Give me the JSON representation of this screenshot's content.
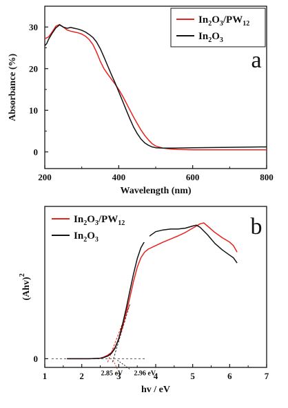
{
  "chart_data": [
    {
      "type": "line",
      "panel_label": "a",
      "xlabel": "Wavelength (nm)",
      "ylabel": "Absorbance (%)",
      "xlim": [
        200,
        800
      ],
      "ylim": [
        -4,
        35
      ],
      "xticks": [
        200,
        400,
        600,
        800
      ],
      "yticks": [
        0,
        10,
        20,
        30
      ],
      "legend_position": "top-right",
      "series": [
        {
          "name": "In2O3/PW12",
          "legend_main": "In",
          "legend_sub1": "2",
          "legend_mid": "O",
          "legend_sub2": "3",
          "legend_tail": "/PW",
          "legend_sub3": "12",
          "color": "#e8211d",
          "points": [
            [
              200,
              27.2
            ],
            [
              210,
              27.6
            ],
            [
              220,
              28.8
            ],
            [
              230,
              30.2
            ],
            [
              240,
              30.6
            ],
            [
              250,
              30.0
            ],
            [
              260,
              29.3
            ],
            [
              270,
              29.0
            ],
            [
              280,
              28.8
            ],
            [
              290,
              28.6
            ],
            [
              300,
              28.3
            ],
            [
              310,
              27.8
            ],
            [
              320,
              27.0
            ],
            [
              330,
              25.8
            ],
            [
              340,
              24.0
            ],
            [
              350,
              21.8
            ],
            [
              360,
              20.0
            ],
            [
              370,
              18.7
            ],
            [
              380,
              17.5
            ],
            [
              390,
              16.3
            ],
            [
              400,
              15.0
            ],
            [
              410,
              13.5
            ],
            [
              420,
              11.8
            ],
            [
              430,
              10.1
            ],
            [
              440,
              8.4
            ],
            [
              450,
              6.8
            ],
            [
              460,
              5.3
            ],
            [
              470,
              4.0
            ],
            [
              480,
              2.9
            ],
            [
              490,
              2.0
            ],
            [
              500,
              1.4
            ],
            [
              520,
              0.9
            ],
            [
              540,
              0.7
            ],
            [
              560,
              0.6
            ],
            [
              600,
              0.5
            ],
            [
              700,
              0.5
            ],
            [
              800,
              0.5
            ]
          ]
        },
        {
          "name": "In2O3",
          "legend_main": "In",
          "legend_sub1": "2",
          "legend_mid": "O",
          "legend_sub2": "3",
          "color": "#111111",
          "points": [
            [
              200,
              25.5
            ],
            [
              205,
              26.0
            ],
            [
              210,
              27.0
            ],
            [
              220,
              28.5
            ],
            [
              230,
              29.8
            ],
            [
              240,
              30.5
            ],
            [
              250,
              30.0
            ],
            [
              260,
              29.7
            ],
            [
              270,
              29.9
            ],
            [
              280,
              29.7
            ],
            [
              290,
              29.5
            ],
            [
              300,
              29.2
            ],
            [
              310,
              28.8
            ],
            [
              320,
              28.2
            ],
            [
              330,
              27.5
            ],
            [
              340,
              26.4
            ],
            [
              350,
              24.8
            ],
            [
              360,
              22.8
            ],
            [
              370,
              20.7
            ],
            [
              380,
              18.6
            ],
            [
              390,
              16.6
            ],
            [
              400,
              14.5
            ],
            [
              410,
              12.3
            ],
            [
              420,
              10.1
            ],
            [
              430,
              8.0
            ],
            [
              440,
              6.0
            ],
            [
              450,
              4.4
            ],
            [
              460,
              3.1
            ],
            [
              470,
              2.2
            ],
            [
              480,
              1.6
            ],
            [
              490,
              1.2
            ],
            [
              500,
              1.0
            ],
            [
              520,
              0.9
            ],
            [
              550,
              0.9
            ],
            [
              600,
              1.0
            ],
            [
              700,
              1.1
            ],
            [
              800,
              1.2
            ]
          ]
        }
      ]
    },
    {
      "type": "line",
      "panel_label": "b",
      "xlabel": "hv / eV",
      "ylabel": "(Ahv)",
      "ylabel_sup": "2",
      "xlim": [
        1,
        7
      ],
      "ylim": [
        -0.2,
        3.5
      ],
      "xticks": [
        1,
        2,
        3,
        4,
        5,
        6,
        7
      ],
      "yticks": [
        0
      ],
      "legend_position": "top-left",
      "annotations": [
        "2.85 eV",
        "2.96 eV"
      ],
      "annotation_points": [
        [
          2.85,
          0
        ],
        [
          2.96,
          0
        ]
      ],
      "series": [
        {
          "name": "In2O3/PW12",
          "legend_main": "In",
          "legend_sub1": "2",
          "legend_mid": "O",
          "legend_sub2": "3",
          "legend_tail": "/PW",
          "legend_sub3": "12",
          "color": "#e8211d",
          "points": [
            [
              1.6,
              0
            ],
            [
              2.2,
              0
            ],
            [
              2.5,
              0.01
            ],
            [
              2.6,
              0.04
            ],
            [
              2.7,
              0.08
            ],
            [
              2.8,
              0.14
            ],
            [
              2.9,
              0.26
            ],
            [
              3.0,
              0.45
            ],
            [
              3.1,
              0.72
            ],
            [
              3.2,
              1.05
            ],
            [
              3.3,
              1.4
            ],
            [
              3.4,
              1.78
            ],
            [
              3.5,
              2.1
            ],
            [
              3.6,
              2.32
            ],
            [
              3.7,
              2.45
            ],
            [
              3.8,
              2.52
            ],
            [
              4.0,
              2.6
            ],
            [
              4.2,
              2.68
            ],
            [
              4.4,
              2.75
            ],
            [
              4.6,
              2.82
            ],
            [
              4.8,
              2.9
            ],
            [
              5.0,
              3.0
            ],
            [
              5.2,
              3.1
            ],
            [
              5.3,
              3.12
            ],
            [
              5.4,
              3.05
            ],
            [
              5.6,
              2.9
            ],
            [
              5.8,
              2.78
            ],
            [
              6.0,
              2.68
            ],
            [
              6.1,
              2.6
            ],
            [
              6.2,
              2.45
            ]
          ]
        },
        {
          "name": "In2O3",
          "legend_main": "In",
          "legend_sub1": "2",
          "legend_mid": "O",
          "legend_sub2": "3",
          "color": "#111111",
          "points": [
            [
              1.6,
              0
            ],
            [
              2.2,
              0
            ],
            [
              2.5,
              0.01
            ],
            [
              2.6,
              0.03
            ],
            [
              2.7,
              0.06
            ],
            [
              2.8,
              0.12
            ],
            [
              2.9,
              0.24
            ],
            [
              3.0,
              0.46
            ],
            [
              3.1,
              0.78
            ],
            [
              3.2,
              1.15
            ],
            [
              3.3,
              1.55
            ],
            [
              3.4,
              1.95
            ],
            [
              3.5,
              2.3
            ],
            [
              3.6,
              2.55
            ],
            [
              3.7,
              2.7
            ],
            [
              3.8,
              2.8
            ],
            [
              4.0,
              2.92
            ],
            [
              4.2,
              2.96
            ],
            [
              4.4,
              2.98
            ],
            [
              4.6,
              2.98
            ],
            [
              4.8,
              3.0
            ],
            [
              5.0,
              3.05
            ],
            [
              5.1,
              3.07
            ],
            [
              5.2,
              3.02
            ],
            [
              5.4,
              2.85
            ],
            [
              5.6,
              2.65
            ],
            [
              5.8,
              2.5
            ],
            [
              6.0,
              2.38
            ],
            [
              6.1,
              2.32
            ],
            [
              6.2,
              2.2
            ]
          ]
        }
      ]
    }
  ]
}
